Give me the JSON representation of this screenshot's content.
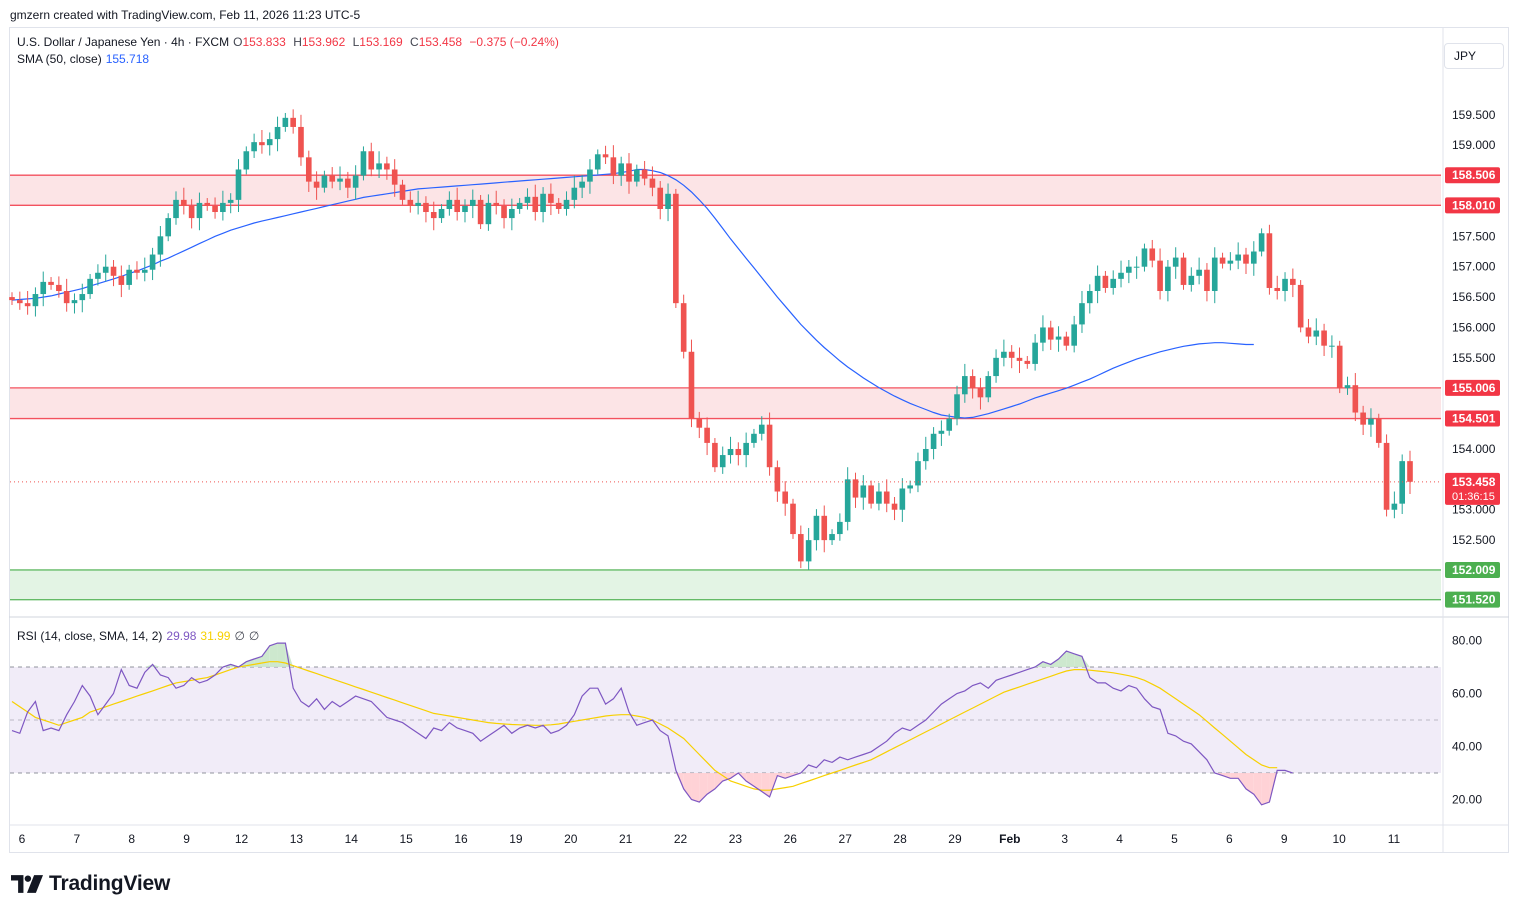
{
  "header": {
    "creator_line": "gmzern created with TradingView.com, Feb 11, 2026 11:23 UTC-5"
  },
  "legend": {
    "symbol": "U.S. Dollar / Japanese Yen · 4h · FXCM",
    "o_label": "O",
    "o_value": "153.833",
    "h_label": "H",
    "h_value": "153.962",
    "l_label": "L",
    "l_value": "153.169",
    "c_label": "C",
    "c_value": "153.458",
    "change": "−0.375 (−0.24%)",
    "sma_label": "SMA (50, close)",
    "sma_value": "155.718",
    "rsi_label": "RSI (14, close, SMA, 14, 2)",
    "rsi_value": "29.98",
    "rsi_sma_value": "31.99",
    "rsi_extra1": "∅",
    "rsi_extra2": "∅"
  },
  "currency": "JPY",
  "footer": {
    "brand": "TradingView"
  },
  "colors": {
    "up": "#26a69a",
    "down": "#ef5350",
    "sma": "#2962ff",
    "rsi": "#7e57c2",
    "rsi_sma": "#f7d000",
    "resistance_fill": "#fce4e6",
    "resistance_line": "#f23645",
    "support_fill": "#e3f4e4",
    "support_line": "#4caf50",
    "price_line": "#ef5350"
  },
  "chart_data": [
    {
      "type": "candlestick",
      "title": "U.S. Dollar / Japanese Yen · 4h · FXCM",
      "y_axis_ticks": [
        "152.500",
        "153.000",
        "153.500",
        "154.000",
        "154.500",
        "155.000",
        "155.500",
        "156.000",
        "156.500",
        "157.000",
        "157.500",
        "158.000",
        "158.500",
        "159.000",
        "159.500"
      ],
      "ylim": [
        151.35,
        160.55
      ],
      "x_tick_labels": [
        "6",
        "7",
        "8",
        "9",
        "12",
        "13",
        "14",
        "15",
        "16",
        "19",
        "20",
        "21",
        "22",
        "23",
        "26",
        "27",
        "28",
        "29",
        "Feb",
        "3",
        "4",
        "5",
        "6",
        "9",
        "10",
        "11"
      ],
      "zones": [
        {
          "kind": "resistance",
          "upper": "158.506",
          "lower": "158.010"
        },
        {
          "kind": "resistance",
          "upper": "155.006",
          "lower": "154.501"
        },
        {
          "kind": "support",
          "upper": "152.009",
          "lower": "151.520"
        }
      ],
      "current_price": "153.458",
      "countdown": "01:36:15",
      "closes": [
        156.45,
        156.4,
        156.35,
        156.55,
        156.75,
        156.7,
        156.6,
        156.4,
        156.45,
        156.55,
        156.8,
        156.9,
        157.0,
        156.85,
        156.7,
        156.95,
        156.9,
        156.95,
        157.2,
        157.5,
        157.8,
        158.1,
        158.0,
        157.8,
        158.05,
        158.0,
        157.9,
        158.05,
        158.1,
        158.6,
        158.9,
        159.05,
        159.0,
        159.1,
        159.3,
        159.45,
        159.3,
        158.8,
        158.4,
        158.3,
        158.5,
        158.4,
        158.45,
        158.3,
        158.5,
        158.9,
        158.6,
        158.7,
        158.6,
        158.35,
        158.1,
        158.0,
        158.05,
        157.9,
        157.8,
        157.95,
        158.1,
        157.9,
        158.0,
        158.1,
        157.7,
        158.05,
        158.0,
        157.8,
        157.95,
        158.05,
        158.15,
        157.9,
        158.2,
        158.05,
        157.95,
        158.1,
        158.3,
        158.4,
        158.6,
        158.85,
        158.8,
        158.5,
        158.7,
        158.4,
        158.6,
        158.45,
        158.3,
        157.95,
        158.2,
        156.4,
        155.6,
        154.5,
        154.35,
        154.1,
        153.7,
        153.9,
        154.0,
        153.9,
        154.1,
        154.25,
        154.4,
        153.7,
        153.3,
        153.1,
        152.6,
        152.15,
        152.5,
        152.9,
        152.5,
        152.6,
        152.8,
        153.5,
        153.2,
        153.4,
        153.1,
        153.3,
        153.1,
        153.0,
        153.35,
        153.4,
        153.8,
        154.0,
        154.25,
        154.3,
        154.5,
        154.9,
        155.2,
        155.0,
        154.85,
        155.2,
        155.5,
        155.6,
        155.5,
        155.45,
        155.4,
        155.75,
        156.0,
        155.8,
        155.85,
        155.7,
        156.05,
        156.4,
        156.6,
        156.85,
        156.65,
        156.8,
        156.9,
        157.0,
        157.0,
        157.3,
        157.1,
        156.6,
        157.0,
        157.15,
        156.7,
        156.85,
        156.95,
        156.6,
        157.15,
        157.05,
        157.1,
        157.2,
        157.05,
        157.25,
        157.55,
        156.65,
        156.6,
        156.8,
        156.7,
        156.0,
        155.85,
        155.95,
        155.7,
        155.7,
        155.0,
        155.05,
        154.6,
        154.4,
        154.5,
        154.1,
        153.0,
        153.1,
        153.8,
        153.46
      ],
      "sma_50": [
        156.45,
        156.46,
        156.47,
        156.48,
        156.5,
        156.52,
        156.55,
        156.58,
        156.61,
        156.64,
        156.68,
        156.72,
        156.76,
        156.8,
        156.84,
        156.89,
        156.93,
        156.98,
        157.03,
        157.09,
        157.14,
        157.2,
        157.26,
        157.32,
        157.38,
        157.44,
        157.5,
        157.55,
        157.6,
        157.64,
        157.68,
        157.72,
        157.75,
        157.78,
        157.81,
        157.84,
        157.87,
        157.9,
        157.93,
        157.96,
        157.99,
        158.02,
        158.05,
        158.08,
        158.11,
        158.14,
        158.16,
        158.18,
        158.2,
        158.22,
        158.24,
        158.26,
        158.28,
        158.29,
        158.3,
        158.31,
        158.32,
        158.33,
        158.34,
        158.35,
        158.36,
        158.37,
        158.38,
        158.39,
        158.4,
        158.41,
        158.42,
        158.43,
        158.44,
        158.45,
        158.46,
        158.47,
        158.48,
        158.49,
        158.5,
        158.51,
        158.52,
        158.53,
        158.55,
        158.57,
        158.6,
        158.6,
        158.58,
        158.55,
        158.5,
        158.43,
        158.34,
        158.23,
        158.1,
        157.96,
        157.8,
        157.63,
        157.46,
        157.3,
        157.14,
        156.98,
        156.82,
        156.66,
        156.5,
        156.35,
        156.2,
        156.05,
        155.92,
        155.79,
        155.67,
        155.56,
        155.45,
        155.35,
        155.26,
        155.17,
        155.09,
        155.01,
        154.94,
        154.87,
        154.81,
        154.75,
        154.7,
        154.65,
        154.6,
        154.56,
        154.54,
        154.52,
        154.51,
        154.52,
        154.55,
        154.58,
        154.62,
        154.66,
        154.7,
        154.74,
        154.79,
        154.84,
        154.88,
        154.92,
        154.96,
        155.0,
        155.05,
        155.1,
        155.15,
        155.21,
        155.27,
        155.33,
        155.38,
        155.43,
        155.48,
        155.52,
        155.56,
        155.6,
        155.63,
        155.66,
        155.69,
        155.71,
        155.73,
        155.74,
        155.75,
        155.75,
        155.74,
        155.73,
        155.72,
        155.72
      ],
      "rsi": [
        46,
        45,
        53,
        57,
        46,
        47,
        46,
        52,
        57,
        63,
        59,
        52,
        56,
        60,
        69,
        63,
        62,
        68,
        71,
        67,
        66,
        62,
        63,
        66,
        64,
        65,
        67,
        70,
        71,
        70,
        72,
        73,
        74,
        78,
        79,
        79,
        62,
        57,
        55,
        58,
        54,
        57,
        55,
        57,
        59,
        58,
        57,
        54,
        51,
        50,
        49,
        47,
        45,
        43,
        47,
        46,
        49,
        47,
        46,
        45,
        42,
        44,
        46,
        48,
        45,
        47,
        48,
        47,
        48,
        45,
        46,
        48,
        52,
        59,
        62,
        62,
        56,
        58,
        62,
        53,
        48,
        49,
        50,
        46,
        44,
        31,
        24,
        20,
        19,
        22,
        24,
        27,
        28,
        30,
        27,
        25,
        23,
        21,
        29,
        28,
        29,
        30,
        33,
        32,
        35,
        34,
        36,
        35,
        36,
        37,
        38,
        40,
        42,
        45,
        47,
        46,
        48,
        50,
        53,
        56,
        58,
        60,
        61,
        63,
        64,
        62,
        65,
        66,
        67,
        68,
        69,
        70,
        72,
        71,
        73,
        76,
        75,
        74,
        66,
        64,
        64,
        62,
        61,
        63,
        62,
        58,
        55,
        54,
        45,
        44,
        42,
        41,
        38,
        35,
        30,
        29,
        28,
        28,
        24,
        22,
        18,
        19,
        31,
        31,
        29.98
      ],
      "rsi_sma": [
        57,
        55,
        53,
        51,
        50,
        49,
        48,
        49,
        50,
        51,
        53,
        54,
        55,
        56,
        57,
        58,
        59,
        60,
        61,
        62,
        63,
        64,
        64.5,
        65,
        65.5,
        66,
        67,
        68,
        69,
        70,
        70.5,
        71,
        71.5,
        72,
        72,
        71.5,
        70.5,
        69.5,
        68.5,
        67.5,
        66.5,
        65.5,
        64.5,
        63.5,
        62.5,
        61.5,
        60.5,
        59.5,
        58.5,
        57.5,
        56.5,
        55.5,
        54.5,
        53.5,
        52.5,
        52,
        51.5,
        51,
        50.5,
        50,
        49.5,
        49,
        48.7,
        48.5,
        48.3,
        48.2,
        48.1,
        48,
        48,
        48.2,
        48.5,
        49,
        49.5,
        50,
        50.5,
        51,
        51.5,
        51.8,
        52,
        52,
        51.5,
        51,
        50,
        48.5,
        47,
        45,
        43,
        40,
        37,
        34,
        31,
        29,
        27,
        26,
        25,
        24,
        23.5,
        23.5,
        24,
        24.5,
        25,
        26,
        27,
        28,
        29,
        30,
        31,
        32,
        33,
        34,
        35,
        36.5,
        38,
        39.5,
        41,
        42.5,
        44,
        45.5,
        47,
        48.5,
        50,
        51.5,
        53,
        54.5,
        56,
        57.5,
        59,
        60.5,
        61.5,
        62.5,
        63.5,
        64.5,
        65.5,
        66.5,
        67.5,
        68.5,
        69,
        69,
        68.8,
        68.5,
        68.2,
        67.8,
        67.3,
        66.7,
        66,
        65,
        63.5,
        62,
        60,
        58,
        56,
        54,
        52,
        49.5,
        47,
        44.5,
        42,
        39.5,
        37,
        35,
        33,
        32,
        31.99
      ]
    }
  ]
}
